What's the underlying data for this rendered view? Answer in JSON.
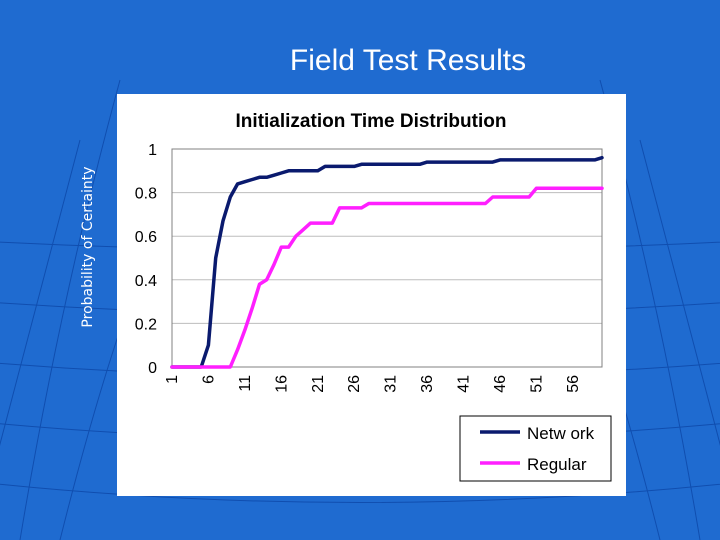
{
  "slide": {
    "title": "Field Test Results",
    "side_label": "Probability of Certainty"
  },
  "colors": {
    "background": "#1f6bd0",
    "network": "#0a1a6e",
    "regular": "#ff1fff",
    "grid": "#bdbdbd"
  },
  "chart_data": {
    "type": "line",
    "title": "Initialization Time Distribution",
    "xlabel": "",
    "ylabel": "",
    "ylim": [
      0,
      1
    ],
    "yticks": [
      "0",
      "0.2",
      "0.4",
      "0.6",
      "0.8",
      "1"
    ],
    "xticks": [
      "1",
      "6",
      "11",
      "16",
      "21",
      "26",
      "31",
      "36",
      "41",
      "46",
      "51",
      "56"
    ],
    "grid": true,
    "legend_position": "bottom-right",
    "series": [
      {
        "name": "Netw ork",
        "color": "#0a1a6e",
        "x": [
          1,
          2,
          3,
          4,
          5,
          6,
          7,
          8,
          9,
          10,
          11,
          12,
          13,
          14,
          15,
          16,
          17,
          18,
          19,
          20,
          21,
          22,
          23,
          24,
          25,
          26,
          27,
          28,
          29,
          30,
          31,
          32,
          33,
          34,
          35,
          36,
          37,
          38,
          39,
          40,
          41,
          42,
          43,
          44,
          45,
          46,
          47,
          48,
          49,
          50,
          51,
          52,
          53,
          54,
          55,
          56,
          57,
          58,
          59,
          60
        ],
        "values": [
          0,
          0,
          0,
          0,
          0,
          0.1,
          0.5,
          0.67,
          0.78,
          0.84,
          0.85,
          0.86,
          0.87,
          0.87,
          0.88,
          0.89,
          0.9,
          0.9,
          0.9,
          0.9,
          0.9,
          0.92,
          0.92,
          0.92,
          0.92,
          0.92,
          0.93,
          0.93,
          0.93,
          0.93,
          0.93,
          0.93,
          0.93,
          0.93,
          0.93,
          0.94,
          0.94,
          0.94,
          0.94,
          0.94,
          0.94,
          0.94,
          0.94,
          0.94,
          0.94,
          0.95,
          0.95,
          0.95,
          0.95,
          0.95,
          0.95,
          0.95,
          0.95,
          0.95,
          0.95,
          0.95,
          0.95,
          0.95,
          0.95,
          0.96
        ]
      },
      {
        "name": "Regular",
        "color": "#ff1fff",
        "x": [
          1,
          2,
          3,
          4,
          5,
          6,
          7,
          8,
          9,
          10,
          11,
          12,
          13,
          14,
          15,
          16,
          17,
          18,
          19,
          20,
          21,
          22,
          23,
          24,
          25,
          26,
          27,
          28,
          29,
          30,
          31,
          32,
          33,
          34,
          35,
          36,
          37,
          38,
          39,
          40,
          41,
          42,
          43,
          44,
          45,
          46,
          47,
          48,
          49,
          50,
          51,
          52,
          53,
          54,
          55,
          56,
          57,
          58,
          59,
          60
        ],
        "values": [
          0,
          0,
          0,
          0,
          0,
          0,
          0,
          0,
          0,
          0.08,
          0.17,
          0.27,
          0.38,
          0.4,
          0.47,
          0.55,
          0.55,
          0.6,
          0.63,
          0.66,
          0.66,
          0.66,
          0.66,
          0.73,
          0.73,
          0.73,
          0.73,
          0.75,
          0.75,
          0.75,
          0.75,
          0.75,
          0.75,
          0.75,
          0.75,
          0.75,
          0.75,
          0.75,
          0.75,
          0.75,
          0.75,
          0.75,
          0.75,
          0.75,
          0.78,
          0.78,
          0.78,
          0.78,
          0.78,
          0.78,
          0.82,
          0.82,
          0.82,
          0.82,
          0.82,
          0.82,
          0.82,
          0.82,
          0.82,
          0.82
        ]
      }
    ]
  }
}
